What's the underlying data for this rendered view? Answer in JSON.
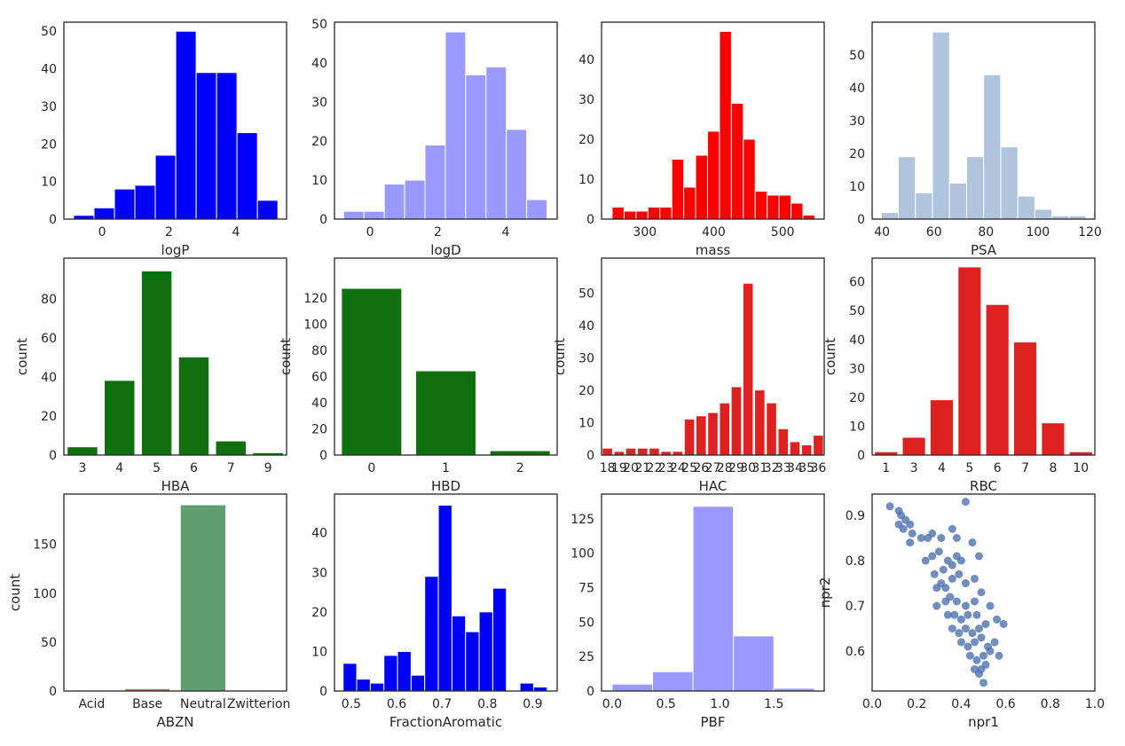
{
  "chart_data": [
    {
      "type": "histogram",
      "xlabel": "logP",
      "color": "#0000ff",
      "bins": [
        -0.85,
        -0.24,
        0.37,
        0.98,
        1.59,
        2.2,
        2.81,
        3.42,
        4.03,
        4.64,
        5.25
      ],
      "values": [
        1,
        3,
        8,
        9,
        17,
        50,
        39,
        39,
        23,
        5
      ],
      "xlim": [
        -1.14,
        5.51
      ],
      "xticks": [
        0,
        2,
        4
      ],
      "ylim": [
        0,
        52.4
      ],
      "yticks": [
        0,
        10,
        20,
        30,
        40,
        50
      ]
    },
    {
      "type": "histogram",
      "xlabel": "logD",
      "color": "#9999ff",
      "bins": [
        -0.78,
        -0.18,
        0.42,
        1.02,
        1.62,
        2.22,
        2.82,
        3.42,
        4.02,
        4.62,
        5.22
      ],
      "values": [
        2,
        2,
        9,
        10,
        19,
        48,
        37,
        39,
        23,
        5
      ],
      "xlim": [
        -1.05,
        5.52
      ],
      "xticks": [
        0,
        2,
        4
      ],
      "ylim": [
        0,
        50.5
      ],
      "yticks": [
        0,
        10,
        20,
        30,
        40,
        50
      ]
    },
    {
      "type": "histogram",
      "xlabel": "mass",
      "color": "#ff0000",
      "bins": [
        252.6,
        269.9,
        287.2,
        304.5,
        321.8,
        339.1,
        356.4,
        373.7,
        391,
        408.3,
        425.6,
        442.9,
        460.2,
        477.5,
        494.8,
        512.1,
        529.4,
        546.7
      ],
      "values": [
        3,
        2,
        2,
        3,
        3,
        15,
        8,
        16,
        22,
        47,
        29,
        20,
        7,
        6,
        6,
        4,
        1
      ],
      "xlim": [
        237.2,
        560.3
      ],
      "xticks": [
        300,
        400,
        500
      ],
      "ylim": [
        0,
        49.3
      ],
      "yticks": [
        0,
        10,
        20,
        30,
        40
      ]
    },
    {
      "type": "histogram",
      "xlabel": "PSA",
      "color": "#b0c4de",
      "bins": [
        39.7,
        46.27,
        52.84,
        59.41,
        65.98,
        72.55,
        79.12,
        85.69,
        92.26,
        98.83,
        105.4,
        111.97,
        118.54
      ],
      "values": [
        2,
        19,
        8,
        57,
        11,
        19,
        44,
        22,
        7,
        3,
        1,
        1
      ],
      "xlim": [
        36.2,
        121.9
      ],
      "xticks": [
        40,
        60,
        80,
        100,
        120
      ],
      "ylim": [
        0,
        60
      ],
      "yticks": [
        0,
        10,
        20,
        30,
        40,
        50
      ]
    },
    {
      "type": "bar",
      "xlabel": "HBA",
      "ylabel": "count",
      "color": "#107010",
      "categories": [
        "3",
        "4",
        "5",
        "6",
        "7",
        "9"
      ],
      "values": [
        4,
        38,
        94,
        50,
        7,
        1
      ],
      "ylim": [
        0,
        100.8
      ],
      "yticks": [
        0,
        20,
        40,
        60,
        80
      ]
    },
    {
      "type": "bar",
      "xlabel": "HBD",
      "ylabel": "count",
      "color": "#107010",
      "categories": [
        "0",
        "1",
        "2"
      ],
      "values": [
        127,
        64,
        3
      ],
      "ylim": [
        0,
        150.4
      ],
      "yticks": [
        0,
        20,
        40,
        60,
        80,
        100,
        120
      ]
    },
    {
      "type": "bar",
      "xlabel": "HAC",
      "ylabel": "count",
      "color": "#dd2020",
      "categories": [
        "18",
        "19",
        "20",
        "21",
        "22",
        "23",
        "24",
        "25",
        "26",
        "27",
        "28",
        "29",
        "30",
        "31",
        "32",
        "33",
        "34",
        "35",
        "36"
      ],
      "values": [
        2,
        1,
        2,
        2,
        2,
        1,
        1,
        11,
        12,
        13,
        16,
        21,
        53,
        20,
        16,
        8,
        4,
        3,
        6
      ],
      "ylim": [
        0,
        60.9
      ],
      "yticks": [
        0,
        10,
        20,
        30,
        40,
        50
      ]
    },
    {
      "type": "bar",
      "xlabel": "RBC",
      "ylabel": "count",
      "color": "#dd2020",
      "categories": [
        "1",
        "3",
        "4",
        "5",
        "6",
        "7",
        "8",
        "10"
      ],
      "values": [
        1,
        6,
        19,
        65,
        52,
        39,
        11,
        1
      ],
      "ylim": [
        0,
        68.2
      ],
      "yticks": [
        0,
        10,
        20,
        30,
        40,
        50,
        60
      ]
    },
    {
      "type": "bar",
      "xlabel": "ABZN",
      "ylabel": "count",
      "colors": [
        "#5975a4",
        "#b07c60",
        "#5f9e6e",
        "#b55d60"
      ],
      "categories": [
        "Acid",
        "Base",
        "Neutral",
        "Zwitterion"
      ],
      "values": [
        0,
        2,
        190,
        0
      ],
      "ylim": [
        0,
        201.4
      ],
      "yticks": [
        0,
        50,
        100,
        150
      ]
    },
    {
      "type": "histogram",
      "xlabel": "FractionAromatic",
      "color": "#0000ff",
      "bins": [
        0.482,
        0.512,
        0.542,
        0.572,
        0.602,
        0.632,
        0.662,
        0.692,
        0.722,
        0.752,
        0.782,
        0.812,
        0.842,
        0.872,
        0.902,
        0.932
      ],
      "values": [
        7,
        3,
        2,
        9,
        10,
        4,
        29,
        47,
        19,
        15,
        20,
        26,
        0,
        2,
        1
      ],
      "xlim": [
        0.463,
        0.954
      ],
      "xticks": [
        0.5,
        0.6,
        0.7,
        0.8,
        0.9
      ],
      "ylim": [
        0,
        49.8
      ],
      "yticks": [
        0,
        10,
        20,
        30,
        40
      ]
    },
    {
      "type": "histogram",
      "xlabel": "PBF",
      "color": "#9999ff",
      "bins": [
        0,
        0.375,
        0.75,
        1.125,
        1.5,
        1.875
      ],
      "values": [
        5,
        14,
        134,
        40,
        2
      ],
      "xlim": [
        -0.098,
        1.967
      ],
      "xticks": [
        {
          "value": 0,
          "label": "0.0"
        },
        0.5,
        {
          "value": 1,
          "label": "1.0"
        },
        1.5
      ],
      "ylim": [
        0,
        142.9
      ],
      "yticks": [
        0,
        25,
        50,
        75,
        100,
        125
      ]
    },
    {
      "type": "scatter",
      "xlabel": "npr1",
      "ylabel": "npr2",
      "color": "#4c72b0",
      "x": [
        0.08,
        0.12,
        0.13,
        0.15,
        0.12,
        0.14,
        0.17,
        0.18,
        0.17,
        0.22,
        0.25,
        0.27,
        0.31,
        0.36,
        0.42,
        0.38,
        0.24,
        0.27,
        0.3,
        0.34,
        0.38,
        0.45,
        0.28,
        0.32,
        0.36,
        0.4,
        0.48,
        0.29,
        0.31,
        0.33,
        0.36,
        0.39,
        0.42,
        0.46,
        0.29,
        0.33,
        0.35,
        0.38,
        0.42,
        0.46,
        0.49,
        0.34,
        0.37,
        0.4,
        0.43,
        0.47,
        0.53,
        0.36,
        0.39,
        0.42,
        0.45,
        0.48,
        0.51,
        0.56,
        0.59,
        0.4,
        0.43,
        0.46,
        0.49,
        0.52,
        0.55,
        0.44,
        0.47,
        0.5,
        0.53,
        0.57,
        0.46,
        0.49,
        0.51,
        0.48,
        0.5
      ],
      "y": [
        0.92,
        0.91,
        0.9,
        0.89,
        0.88,
        0.87,
        0.88,
        0.86,
        0.84,
        0.85,
        0.85,
        0.86,
        0.85,
        0.87,
        0.93,
        0.85,
        0.8,
        0.81,
        0.82,
        0.8,
        0.81,
        0.84,
        0.77,
        0.78,
        0.79,
        0.8,
        0.81,
        0.74,
        0.75,
        0.74,
        0.76,
        0.77,
        0.75,
        0.76,
        0.7,
        0.71,
        0.72,
        0.71,
        0.7,
        0.71,
        0.73,
        0.68,
        0.68,
        0.67,
        0.68,
        0.68,
        0.7,
        0.65,
        0.64,
        0.65,
        0.64,
        0.65,
        0.66,
        0.67,
        0.66,
        0.62,
        0.61,
        0.62,
        0.63,
        0.61,
        0.62,
        0.59,
        0.58,
        0.59,
        0.6,
        0.59,
        0.56,
        0.56,
        0.57,
        0.55,
        0.53
      ],
      "xlim": [
        0,
        1
      ],
      "xticks": [
        {
          "value": 0,
          "label": "0.0"
        },
        0.2,
        0.4,
        0.6,
        0.8,
        {
          "value": 1,
          "label": "1.0"
        }
      ],
      "ylim": [
        0.512,
        0.947
      ],
      "yticks": [
        0.6,
        0.7,
        0.8,
        0.9
      ]
    }
  ]
}
